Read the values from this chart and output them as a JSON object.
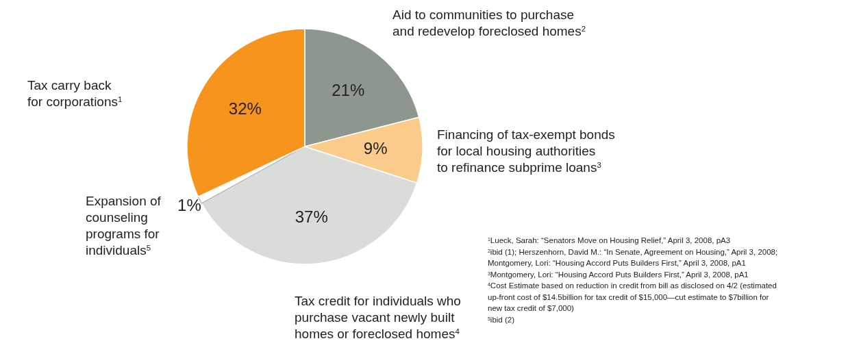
{
  "chart_data": {
    "type": "pie",
    "categories": [
      "Aid to communities to purchase and redevelop foreclosed homes$^{2}$",
      "Financing of tax-exempt bonds for local housing authorities to refinance subprime loans$^{3}$",
      "Tax credit for individuals who purchase vacant newly built homes or foreclosed homes$^{4}$",
      "Expansion of counseling programs for individuals$^{5}$",
      "Tax carry back for corporations$^{1}$"
    ],
    "values": [
      21,
      9,
      37,
      1,
      32
    ],
    "value_labels": [
      "21%",
      "9%",
      "37%",
      "1%",
      "32%"
    ],
    "colors": [
      "#8d978e",
      "#fbcb8c",
      "#d9dcd8",
      "#ffffff",
      "#f7941d"
    ],
    "annotations": [
      "$^{1}$Lueck, Sarah: “Senators Move on Housing Relief,” April 3, 2008, pA3",
      "$^{2}$ibid (1); Herszenhorn, David M.: “In Senate, Agreement on Housing,” April 3, 2008; Montgomery, Lori: “Housing Accord Puts Builders First,” April 3, 2008, pA1",
      "$^{3}$Montgomery, Lori: “Housing Accord Puts Builders First,” April 3, 2008, pA1",
      "$^{4}$Cost Estimate based on reduction in credit from bill as disclosed on 4/2 (estimated up-front cost of $14.5billion for tax credit of $15,000—cut estimate to $7billion for new tax credit of $7,000)",
      "$^{5}$ibid (2)"
    ]
  }
}
